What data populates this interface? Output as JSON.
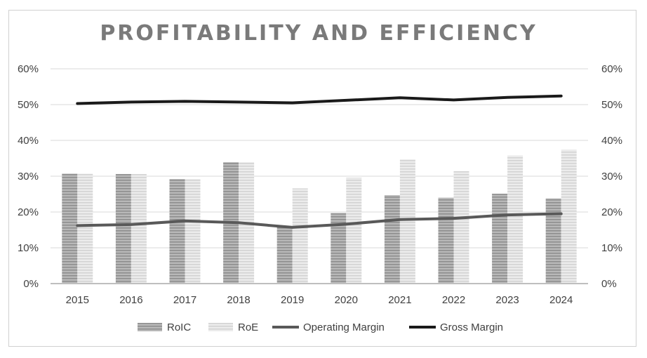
{
  "chart_data": {
    "type": "bar",
    "title": "PROFITABILITY AND EFFICIENCY",
    "categories": [
      "2015",
      "2016",
      "2017",
      "2018",
      "2019",
      "2020",
      "2021",
      "2022",
      "2023",
      "2024"
    ],
    "y_ticks": [
      "0%",
      "10%",
      "20%",
      "30%",
      "40%",
      "50%",
      "60%"
    ],
    "ylim": [
      0,
      60
    ],
    "y2lim": [
      0,
      60
    ],
    "grid": true,
    "legend_position": "bottom",
    "series": [
      {
        "name": "RoIC",
        "kind": "bar",
        "color": "#a6a6a6",
        "values": [
          30.7,
          30.6,
          29.2,
          33.9,
          15.8,
          19.7,
          24.7,
          24.0,
          25.1,
          23.8
        ]
      },
      {
        "name": "RoE",
        "kind": "bar",
        "color": "#dedede",
        "values": [
          30.7,
          30.6,
          29.2,
          33.9,
          26.6,
          29.6,
          34.7,
          31.4,
          35.8,
          37.4
        ]
      },
      {
        "name": "Operating Margin",
        "kind": "line",
        "color": "#595959",
        "values": [
          16.2,
          16.5,
          17.5,
          17.0,
          15.7,
          16.6,
          17.9,
          18.2,
          19.2,
          19.5
        ]
      },
      {
        "name": "Gross Margin",
        "kind": "line",
        "color": "#1a1a1a",
        "values": [
          50.3,
          50.7,
          50.9,
          50.7,
          50.5,
          51.2,
          51.9,
          51.3,
          52.0,
          52.4
        ]
      }
    ]
  }
}
